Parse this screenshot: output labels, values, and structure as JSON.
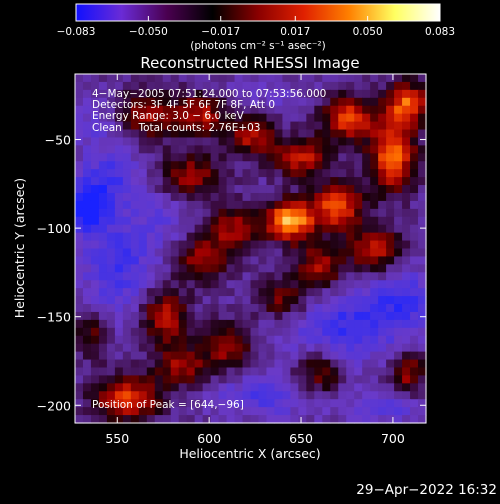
{
  "chart_data": {
    "type": "heatmap",
    "title": "Reconstructed RHESSI Image",
    "xlabel": "Heliocentric X (arcsec)",
    "ylabel": "Heliocentric Y (arcsec)",
    "xlim": [
      527,
      718
    ],
    "ylim": [
      -210,
      -13
    ],
    "x_ticks": [
      550,
      600,
      650,
      700
    ],
    "x_tick_labels": [
      "550",
      "600",
      "650",
      "700"
    ],
    "y_ticks": [
      -50,
      -100,
      -150,
      -200
    ],
    "y_tick_labels": [
      "−50",
      "−100",
      "−150",
      "−200"
    ],
    "colorbar": {
      "min": -0.083,
      "max": 0.083,
      "ticks": [
        -0.083,
        -0.05,
        -0.017,
        0.017,
        0.05,
        0.083
      ],
      "tick_labels": [
        "−0.083",
        "−0.050",
        "−0.017",
        "0.017",
        "0.050",
        "0.083"
      ],
      "unit_label": "(photons cm⁻² s⁻¹ asec⁻²)",
      "colors": [
        "#1010ff",
        "#6a2bd6",
        "#4a0050",
        "#000000",
        "#8a0000",
        "#e02000",
        "#ff8000",
        "#ffff60",
        "#ffffff"
      ]
    },
    "annotations": [
      "4−May−2005 07:51:24.000 to 07:53:56.000",
      "Detectors: 3F 4F 5F 6F 7F 8F, Att 0",
      "Energy Range: 3.0 − 6.0 keV",
      "Clean     Total counts: 2.76E+03"
    ],
    "peak_label": "Position of Peak = [644,−96]",
    "peak": [
      644,
      -96
    ],
    "footer_timestamp": "29−Apr−2022 16:32",
    "blobs": [
      {
        "x": 644,
        "y": -96,
        "sx": 9,
        "sy": 8,
        "a": 1.0
      },
      {
        "x": 670,
        "y": -88,
        "sx": 10,
        "sy": 9,
        "a": 0.75
      },
      {
        "x": 700,
        "y": -60,
        "sx": 9,
        "sy": 14,
        "a": 0.8
      },
      {
        "x": 708,
        "y": -30,
        "sx": 8,
        "sy": 9,
        "a": 0.75
      },
      {
        "x": 676,
        "y": -38,
        "sx": 10,
        "sy": 9,
        "a": 0.7
      },
      {
        "x": 650,
        "y": -60,
        "sx": 11,
        "sy": 8,
        "a": 0.6
      },
      {
        "x": 623,
        "y": -48,
        "sx": 9,
        "sy": 8,
        "a": 0.55
      },
      {
        "x": 596,
        "y": -36,
        "sx": 10,
        "sy": 8,
        "a": 0.55
      },
      {
        "x": 566,
        "y": -36,
        "sx": 12,
        "sy": 10,
        "a": 0.5
      },
      {
        "x": 590,
        "y": -70,
        "sx": 12,
        "sy": 9,
        "a": 0.5
      },
      {
        "x": 613,
        "y": -100,
        "sx": 10,
        "sy": 9,
        "a": 0.5
      },
      {
        "x": 596,
        "y": -118,
        "sx": 10,
        "sy": 9,
        "a": 0.5
      },
      {
        "x": 660,
        "y": -122,
        "sx": 9,
        "sy": 9,
        "a": 0.55
      },
      {
        "x": 690,
        "y": -112,
        "sx": 10,
        "sy": 9,
        "a": 0.6
      },
      {
        "x": 640,
        "y": -140,
        "sx": 10,
        "sy": 8,
        "a": 0.45
      },
      {
        "x": 576,
        "y": -150,
        "sx": 9,
        "sy": 11,
        "a": 0.6
      },
      {
        "x": 610,
        "y": -166,
        "sx": 9,
        "sy": 9,
        "a": 0.55
      },
      {
        "x": 585,
        "y": -178,
        "sx": 10,
        "sy": 8,
        "a": 0.5
      },
      {
        "x": 555,
        "y": -196,
        "sx": 13,
        "sy": 9,
        "a": 0.7
      },
      {
        "x": 660,
        "y": -182,
        "sx": 9,
        "sy": 8,
        "a": 0.45
      },
      {
        "x": 708,
        "y": -182,
        "sx": 7,
        "sy": 9,
        "a": 0.5
      },
      {
        "x": 536,
        "y": -160,
        "sx": 7,
        "sy": 10,
        "a": 0.35
      },
      {
        "x": 533,
        "y": -88,
        "sx": 8,
        "sy": 9,
        "a": -0.9
      },
      {
        "x": 550,
        "y": -120,
        "sx": 14,
        "sy": 20,
        "a": -0.55
      },
      {
        "x": 546,
        "y": -72,
        "sx": 12,
        "sy": 12,
        "a": -0.5
      },
      {
        "x": 675,
        "y": -155,
        "sx": 22,
        "sy": 14,
        "a": -0.6
      },
      {
        "x": 706,
        "y": -140,
        "sx": 12,
        "sy": 12,
        "a": -0.5
      },
      {
        "x": 630,
        "y": -195,
        "sx": 18,
        "sy": 8,
        "a": -0.45
      },
      {
        "x": 696,
        "y": -200,
        "sx": 14,
        "sy": 6,
        "a": -0.45
      },
      {
        "x": 575,
        "y": -96,
        "sx": 10,
        "sy": 12,
        "a": -0.25
      },
      {
        "x": 630,
        "y": -25,
        "sx": 12,
        "sy": 6,
        "a": -0.2
      },
      {
        "x": 540,
        "y": -40,
        "sx": 10,
        "sy": 10,
        "a": -0.3
      }
    ]
  }
}
